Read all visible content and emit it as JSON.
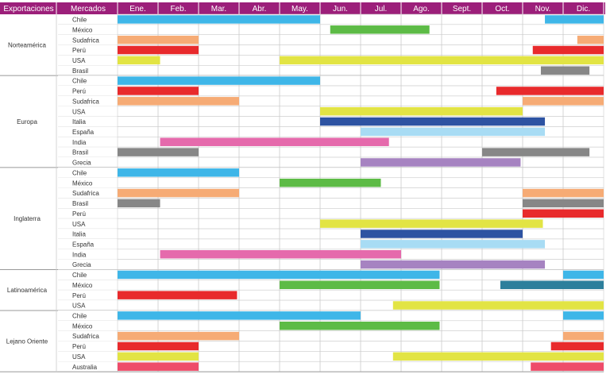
{
  "chart_data": {
    "type": "gantt",
    "header": {
      "region_col": "Exportaciones",
      "market_col": "Mercados"
    },
    "months": [
      "Ene.",
      "Feb.",
      "Mar.",
      "Abr.",
      "May.",
      "Jun.",
      "Jul.",
      "Ago.",
      "Sept.",
      "Oct.",
      "Nov.",
      "Dic."
    ],
    "colors": {
      "header": "#9c1f7a",
      "grid": "#cccccc",
      "Chile": "#3eb6e8",
      "México": "#5dbb46",
      "Sudafrica": "#f6ab75",
      "Perú": "#e82a2c",
      "USA": "#e2e444",
      "Brasil": "#878787",
      "Italia": "#2d53a2",
      "España": "#a8dcf4",
      "India": "#e56aac",
      "Grecia": "#a683c1",
      "México (Latinoamérica)": "#2d7f9c",
      "Australia": "#ee4c6a"
    },
    "regions": [
      {
        "name": "Norteamérica",
        "rows": [
          {
            "market": "Chile",
            "bars": [
              [
                1,
                6.0
              ],
              [
                11.55,
                13
              ]
            ]
          },
          {
            "market": "México",
            "bars": [
              [
                6.25,
                8.7
              ]
            ]
          },
          {
            "market": "Sudafrica",
            "bars": [
              [
                1,
                3.0
              ],
              [
                12.35,
                13
              ]
            ]
          },
          {
            "market": "Perú",
            "bars": [
              [
                1,
                3.0
              ],
              [
                11.25,
                13
              ]
            ]
          },
          {
            "market": "USA",
            "bars": [
              [
                1,
                2.05
              ],
              [
                5.0,
                13
              ]
            ]
          },
          {
            "market": "Brasil",
            "bars": [
              [
                11.45,
                12.65
              ]
            ]
          }
        ]
      },
      {
        "name": "Europa",
        "rows": [
          {
            "market": "Chile",
            "bars": [
              [
                1,
                6.0
              ]
            ]
          },
          {
            "market": "Perú",
            "bars": [
              [
                1,
                3.0
              ],
              [
                10.35,
                13
              ]
            ]
          },
          {
            "market": "Sudafrica",
            "bars": [
              [
                1,
                4.0
              ],
              [
                11.0,
                13
              ]
            ]
          },
          {
            "market": "USA",
            "bars": [
              [
                6.0,
                11.0
              ]
            ]
          },
          {
            "market": "Italia",
            "bars": [
              [
                6.0,
                11.55
              ]
            ]
          },
          {
            "market": "España",
            "bars": [
              [
                7.0,
                11.55
              ]
            ]
          },
          {
            "market": "India",
            "bars": [
              [
                2.05,
                7.7
              ]
            ]
          },
          {
            "market": "Brasil",
            "bars": [
              [
                1,
                3.0
              ],
              [
                10.0,
                12.65
              ]
            ]
          },
          {
            "market": "Grecia",
            "bars": [
              [
                7.0,
                10.95
              ]
            ]
          }
        ]
      },
      {
        "name": "Inglaterra",
        "rows": [
          {
            "market": "Chile",
            "bars": [
              [
                1,
                4.0
              ]
            ]
          },
          {
            "market": "México",
            "bars": [
              [
                5.0,
                7.5
              ]
            ]
          },
          {
            "market": "Sudafrica",
            "bars": [
              [
                1,
                4.0
              ],
              [
                11.0,
                13
              ]
            ]
          },
          {
            "market": "Brasil",
            "bars": [
              [
                1,
                2.05
              ],
              [
                11.0,
                13
              ]
            ]
          },
          {
            "market": "Perú",
            "bars": [
              [
                11.0,
                13
              ]
            ]
          },
          {
            "market": "USA",
            "bars": [
              [
                6.0,
                11.5
              ]
            ]
          },
          {
            "market": "Italia",
            "bars": [
              [
                7.0,
                11.0
              ]
            ]
          },
          {
            "market": "España",
            "bars": [
              [
                7.0,
                11.55
              ]
            ]
          },
          {
            "market": "India",
            "bars": [
              [
                2.05,
                8.0
              ]
            ]
          },
          {
            "market": "Grecia",
            "bars": [
              [
                7.0,
                11.55
              ]
            ]
          }
        ]
      },
      {
        "name": "Latinoamérica",
        "rows": [
          {
            "market": "Chile",
            "bars": [
              [
                1,
                8.95
              ],
              [
                12.0,
                13
              ]
            ]
          },
          {
            "market": "México",
            "bars": [
              [
                5.0,
                8.95
              ]
            ],
            "extra": [
              [
                10.45,
                13
              ]
            ]
          },
          {
            "market": "Perú",
            "bars": [
              [
                1,
                3.95
              ]
            ]
          },
          {
            "market": "USA",
            "bars": [
              [
                7.8,
                13
              ]
            ]
          }
        ]
      },
      {
        "name": "Lejano Oriente",
        "rows": [
          {
            "market": "Chile",
            "bars": [
              [
                1,
                7.0
              ],
              [
                12.0,
                13
              ]
            ]
          },
          {
            "market": "México",
            "bars": [
              [
                5.0,
                8.95
              ]
            ]
          },
          {
            "market": "Sudafrica",
            "bars": [
              [
                1,
                4.0
              ],
              [
                12.0,
                13
              ]
            ]
          },
          {
            "market": "Perú",
            "bars": [
              [
                1,
                3.0
              ],
              [
                11.7,
                13
              ]
            ]
          },
          {
            "market": "USA",
            "bars": [
              [
                1,
                3.0
              ],
              [
                7.8,
                13
              ]
            ]
          },
          {
            "market": "Australia",
            "bars": [
              [
                1,
                3.0
              ],
              [
                11.2,
                13
              ]
            ]
          }
        ]
      }
    ]
  }
}
